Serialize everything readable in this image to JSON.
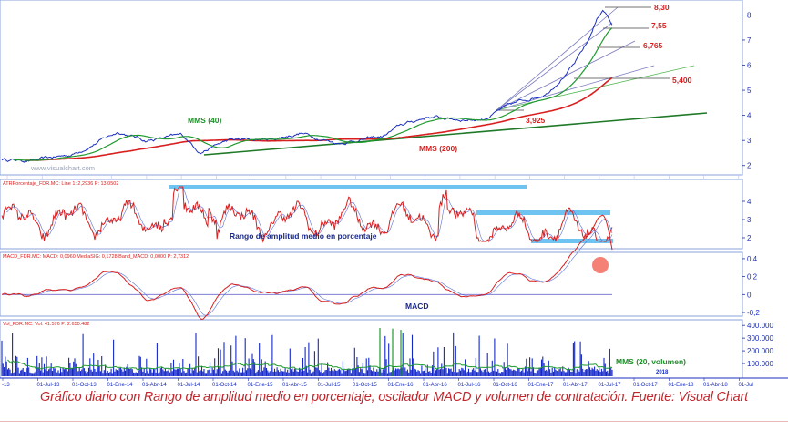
{
  "watermark": "www.visualchart.com",
  "caption": "Gráfico diario con Rango de amplitud medio en porcentaje, oscilador MACD y volumen de contratación. Fuente: Visual Chart",
  "colors": {
    "price": "#1a2fbf",
    "mms40": "#1f9a2f",
    "mms200": "#d81e1e",
    "trend": "#1e7a28",
    "fan": "#7a7ac0",
    "label_red": "#d62020",
    "label_green": "#1f8f2a",
    "band": "#6fc3f0",
    "atr": "#d81e1e",
    "macd": "#d81e1e",
    "signal": "#5b6fd6",
    "volume": "#1428c8",
    "volume_ma": "#1f9a2f",
    "axis": "#1a2fbf",
    "grid": "#b9c2e8"
  },
  "chart_data": [
    {
      "type": "line",
      "panel": "price",
      "series": [
        {
          "name": "MMS (40)",
          "color": "#1f9a2f"
        },
        {
          "name": "MMS (200)",
          "color": "#d81e1e"
        }
      ],
      "annotations": [
        "MMS (40)",
        "MMS (200)"
      ],
      "price_labels": [
        "8,30",
        "7,55",
        "6,765",
        "5,400",
        "3,925"
      ],
      "yticks": [
        "2",
        "3",
        "4",
        "5",
        "6",
        "7",
        "8"
      ],
      "ylim": [
        1.7,
        8.45
      ]
    },
    {
      "type": "line",
      "panel": "atr",
      "header": "ATRPorcentaje_FDR.MC: Line 1: 2,2936  P: 13,0502",
      "annotation": "Rango de amplitud medio en porcentaje",
      "yticks": [
        "2",
        "3",
        "4"
      ],
      "ylim": [
        1.5,
        5.1
      ]
    },
    {
      "type": "line",
      "panel": "macd",
      "header": "MACD_FDR.MC: MACD: 0,0960  MediaSIG: 0,1728  Band_MACD: 0,0000  P: 2,7312",
      "annotation": "MACD",
      "yticks": [
        "0,4",
        "0,2",
        "0",
        "-0,2"
      ],
      "ylim": [
        -0.22,
        0.45
      ]
    },
    {
      "type": "bar",
      "panel": "volume",
      "header": "Vol_FDR.MC: Vol: 41.576  P: 2.650.482",
      "annotation": "MMS (20, volumen)",
      "yticks": [
        "100.000",
        "200.000",
        "300.000",
        "400.000"
      ],
      "ylim": [
        0,
        430000
      ]
    }
  ],
  "x_axis": {
    "ticks": [
      "-13",
      "01-Jul-13",
      "01-Oct-13",
      "01-Ene-14",
      "01-Abr-14",
      "01-Jul-14",
      "01-Oct-14",
      "01-Ene-15",
      "01-Abr-15",
      "01-Jul-15",
      "01-Oct-15",
      "01-Ene-16",
      "01-Abr-16",
      "01-Jul-16",
      "01-Oct-16",
      "01-Ene-17",
      "01-Abr-17",
      "01-Jul-17",
      "01-Oct-17",
      "01-Ene-18",
      "01-Abr-18",
      "01-Jul"
    ],
    "year_label": "2018"
  }
}
